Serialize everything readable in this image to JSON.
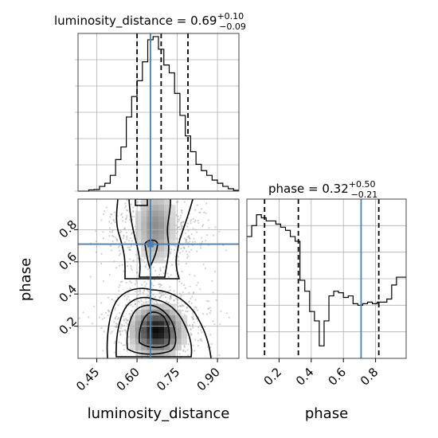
{
  "chart_data": [
    {
      "type": "histogram",
      "panel": "luminosity_distance marginal",
      "title_name": "luminosity_distance",
      "title_value": "0.69",
      "title_plus": "+0.10",
      "title_minus": "−0.09",
      "x": [
        0.39,
        0.41,
        0.43,
        0.45,
        0.47,
        0.49,
        0.51,
        0.53,
        0.55,
        0.57,
        0.59,
        0.61,
        0.63,
        0.65,
        0.67,
        0.69,
        0.71,
        0.73,
        0.75,
        0.77,
        0.79,
        0.81,
        0.83,
        0.85,
        0.87,
        0.89,
        0.91,
        0.93,
        0.95,
        0.97
      ],
      "values": [
        0,
        0,
        0.8,
        1.0,
        3,
        5,
        10,
        20,
        28,
        47,
        60,
        70,
        82,
        96,
        98,
        90,
        80,
        75,
        62,
        48,
        35,
        25,
        17,
        13,
        10,
        7,
        5,
        3,
        1.5,
        0.5
      ],
      "xlim": [
        0.38,
        0.98
      ],
      "ylim": [
        0,
        100
      ],
      "quantile_lines": [
        0.6,
        0.69,
        0.79
      ],
      "truth": 0.65,
      "grid": true
    },
    {
      "type": "heatmap",
      "panel": "2D density with contours",
      "xlabel": "luminosity_distance",
      "ylabel": "phase",
      "xlim": [
        0.38,
        0.98
      ],
      "ylim": [
        0.0,
        0.99
      ],
      "xticks": [
        "0.45",
        "0.60",
        "0.75",
        "0.90"
      ],
      "yticks": [
        "0.2",
        "0.4",
        "0.6",
        "0.8"
      ],
      "truth": [
        0.65,
        0.71
      ],
      "grid": true
    },
    {
      "type": "histogram",
      "panel": "phase marginal",
      "title_name": "phase",
      "title_value": "0.32",
      "title_plus": "+0.50",
      "title_minus": "−0.21",
      "xlabel": "phase",
      "x": [
        0.015,
        0.045,
        0.075,
        0.105,
        0.135,
        0.165,
        0.195,
        0.225,
        0.255,
        0.285,
        0.315,
        0.345,
        0.375,
        0.405,
        0.435,
        0.465,
        0.495,
        0.525,
        0.555,
        0.585,
        0.615,
        0.645,
        0.675,
        0.705,
        0.735,
        0.765,
        0.795,
        0.825,
        0.855,
        0.885,
        0.915,
        0.945,
        0.975
      ],
      "values": [
        78,
        85,
        92,
        90,
        88,
        88,
        86,
        84,
        82,
        78,
        75,
        50,
        43,
        30,
        24,
        8,
        24,
        40,
        43,
        42,
        39,
        40,
        35,
        34,
        35,
        36,
        35,
        36,
        36,
        38,
        47,
        52,
        52
      ],
      "xlim": [
        0.0,
        0.99
      ],
      "ylim": [
        0,
        102
      ],
      "xticks": [
        "0.2",
        "0.4",
        "0.6",
        "0.8"
      ],
      "quantile_lines": [
        0.11,
        0.32,
        0.82
      ],
      "truth": 0.71,
      "grid": true
    }
  ],
  "colors": {
    "truth": "#4682b4",
    "hist": "#000000",
    "quantile": "#000000",
    "grid": "#b0b0b0",
    "frame": "#444444"
  }
}
